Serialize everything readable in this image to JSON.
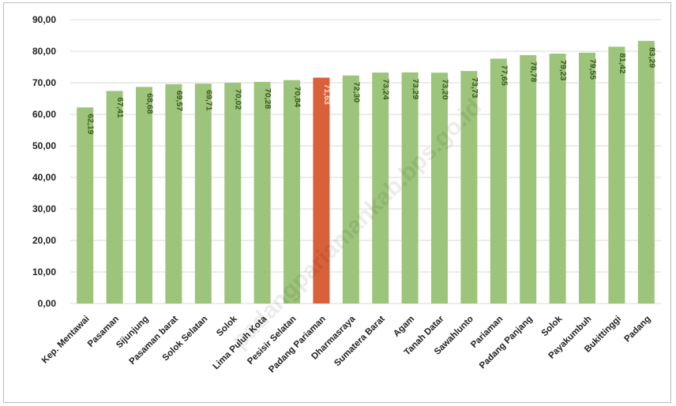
{
  "chart_data": {
    "type": "bar",
    "categories": [
      "Kep. Mentawai",
      "Pasaman",
      "Sijunjung",
      "Pasaman barat",
      "Solok Selatan",
      "Solok",
      "Lima Puluh Kota",
      "Pesisir Selatan",
      "Padang Pariaman",
      "Dharmasraya",
      "Sumatera Barat",
      "Agam",
      "Tanah Datar",
      "Sawahlunto",
      "Pariaman",
      "Padang Panjang",
      "Solok",
      "Payakumbuh",
      "Bukittinggi",
      "Padang"
    ],
    "values": [
      62.19,
      67.41,
      68.68,
      69.57,
      69.71,
      70.02,
      70.28,
      70.84,
      71.63,
      72.3,
      73.24,
      73.29,
      73.2,
      73.73,
      77.65,
      78.78,
      79.23,
      79.55,
      81.42,
      83.29
    ],
    "value_labels": [
      "62,19",
      "67,41",
      "68,68",
      "69,57",
      "69,71",
      "70,02",
      "70,28",
      "70,84",
      "71,63",
      "72,30",
      "73,24",
      "73,29",
      "73,20",
      "73,73",
      "77,65",
      "78,78",
      "79,23",
      "79,55",
      "81,42",
      "83,29"
    ],
    "y_ticks": [
      "0,00",
      "10,00",
      "20,00",
      "30,00",
      "40,00",
      "50,00",
      "60,00",
      "70,00",
      "80,00",
      "90,00"
    ],
    "ylim": [
      0,
      90
    ],
    "highlight_index": 8,
    "colors": {
      "bar": "#9cc47a",
      "highlight": "#d9613a",
      "grid": "#d9d9d9"
    },
    "grid": true,
    "title": "",
    "xlabel": "",
    "ylabel": "",
    "watermark": "padangpariamankab.bps.go.id"
  }
}
